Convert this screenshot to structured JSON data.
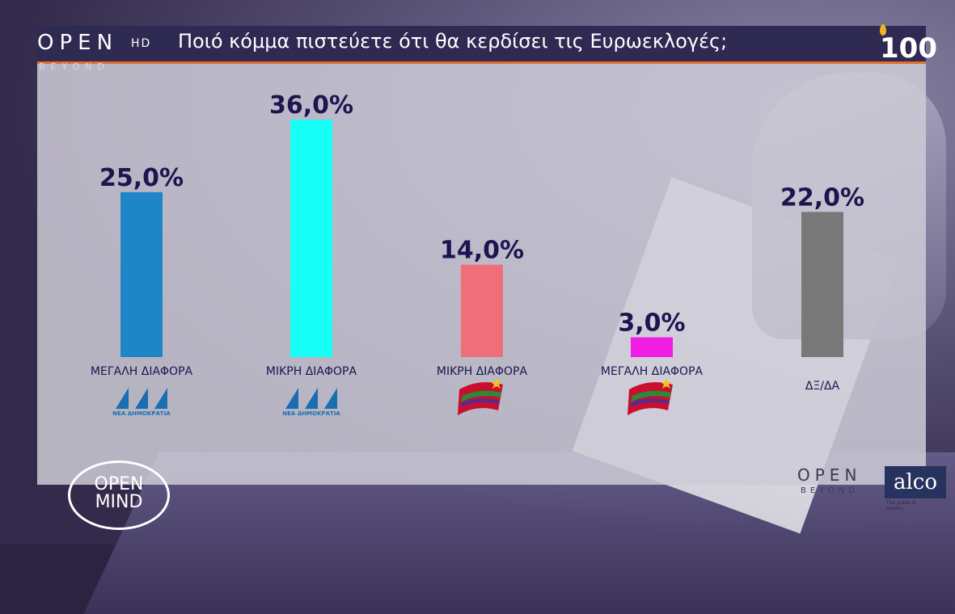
{
  "header": {
    "brand": "OPEN",
    "brand_hd": "HD",
    "brand_sub": "BEYOND",
    "title": "Ποιό κόμμα πιστεύετε ότι θα κερδίσει τις Ευρωεκλογές;",
    "corner_logo": "100"
  },
  "chart_data": {
    "type": "bar",
    "title": "Ποιό κόμμα πιστεύετε ότι θα κερδίσει τις Ευρωεκλογές;",
    "categories": [
      "ΜΕΓΑΛΗ ΔΙΑΦΟΡΑ",
      "ΜΙΚΡΗ ΔΙΑΦΟΡΑ",
      "ΜΙΚΡΗ ΔΙΑΦΟΡΑ",
      "ΜΕΓΑΛΗ ΔΙΑΦΟΡΑ",
      "ΔΞ/ΔΑ"
    ],
    "values": [
      25.0,
      36.0,
      14.0,
      3.0,
      22.0
    ],
    "value_labels": [
      "25,0%",
      "36,0%",
      "14,0%",
      "3,0%",
      "22,0%"
    ],
    "party": [
      "ΝΔ",
      "ΝΔ",
      "ΣΥΡΙΖΑ",
      "ΣΥΡΙΖΑ",
      ""
    ],
    "party_logo_text": [
      "ΝΕΑ ΔΗΜΟΚΡΑΤΙΑ",
      "ΝΕΑ ΔΗΜΟΚΡΑΤΙΑ",
      "",
      "",
      ""
    ],
    "colors": [
      "#1e86c6",
      "#17fff6",
      "#f06e79",
      "#f01de3",
      "#787878"
    ],
    "xlabel": "",
    "ylabel": "",
    "ylim": [
      0,
      36
    ],
    "grid": false,
    "legend": "none"
  },
  "footer": {
    "brand": "OPEN",
    "brand_sub": "BEYOND",
    "pollster": "alco",
    "pollster_tagline": "The pulse of society",
    "show_logo": "OPEN MIND"
  },
  "icons": {
    "nd_logo": "nd-party-logo-icon",
    "syriza_logo": "syriza-flag-icon"
  }
}
